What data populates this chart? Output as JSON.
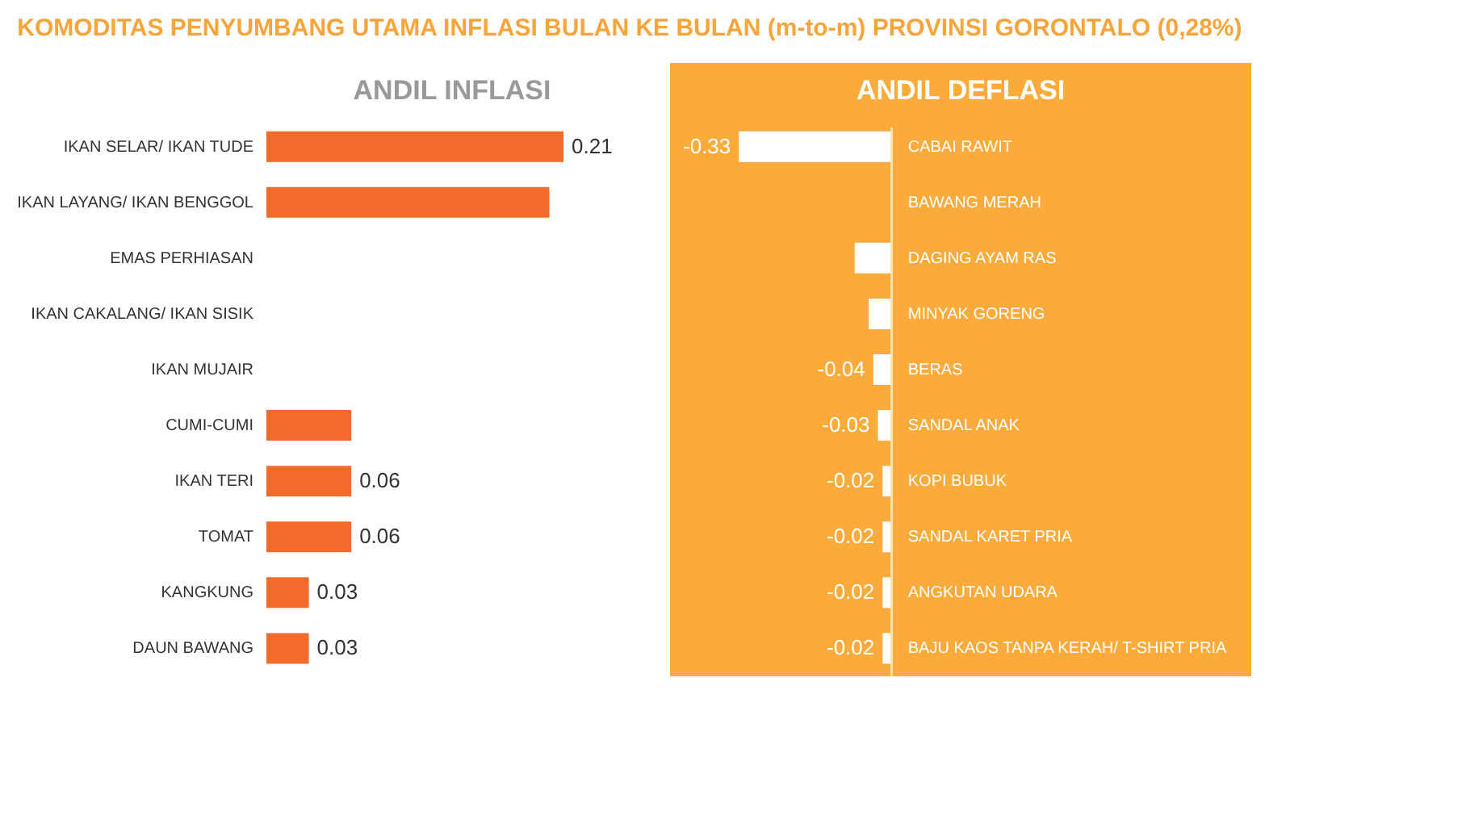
{
  "chart_data": [
    {
      "type": "bar",
      "orientation": "horizontal",
      "title": "KOMODITAS PENYUMBANG UTAMA INFLASI BULAN KE BULAN (m-to-m) PROVINSI GORONTALO (0,28%)",
      "subtitle": "ANDIL INFLASI",
      "categories": [
        "IKAN SELAR/ IKAN TUDE",
        "IKAN LAYANG/ IKAN BENGGOL",
        "EMAS PERHIASAN",
        "IKAN CAKALANG/ IKAN SISIK",
        "IKAN MUJAIR",
        "CUMI-CUMI",
        "IKAN TERI",
        "TOMAT",
        "KANGKUNG",
        "DAUN BAWANG"
      ],
      "values": [
        0.21,
        0.2,
        null,
        null,
        null,
        0.06,
        0.06,
        0.06,
        0.03,
        0.03
      ],
      "value_labels": [
        "0.21",
        null,
        null,
        null,
        null,
        null,
        "0.06",
        "0.06",
        "0.03",
        "0.03"
      ],
      "color": "#f26b2a"
    },
    {
      "type": "bar",
      "orientation": "horizontal",
      "subtitle": "ANDIL DEFLASI",
      "categories": [
        "CABAI RAWIT",
        "BAWANG MERAH",
        "DAGING AYAM RAS",
        "MINYAK GORENG",
        "BERAS",
        "SANDAL ANAK",
        "KOPI BUBUK",
        "SANDAL KARET PRIA",
        "ANGKUTAN UDARA",
        "BAJU KAOS TANPA KERAH/ T-SHIRT PRIA"
      ],
      "values": [
        -0.33,
        null,
        -0.08,
        -0.05,
        -0.04,
        -0.03,
        -0.02,
        -0.02,
        -0.02,
        -0.02
      ],
      "value_labels": [
        "-0.33",
        null,
        null,
        null,
        "-0.04",
        "-0.03",
        "-0.02",
        "-0.02",
        "-0.02",
        "-0.02"
      ],
      "color": "#ffffff"
    }
  ]
}
